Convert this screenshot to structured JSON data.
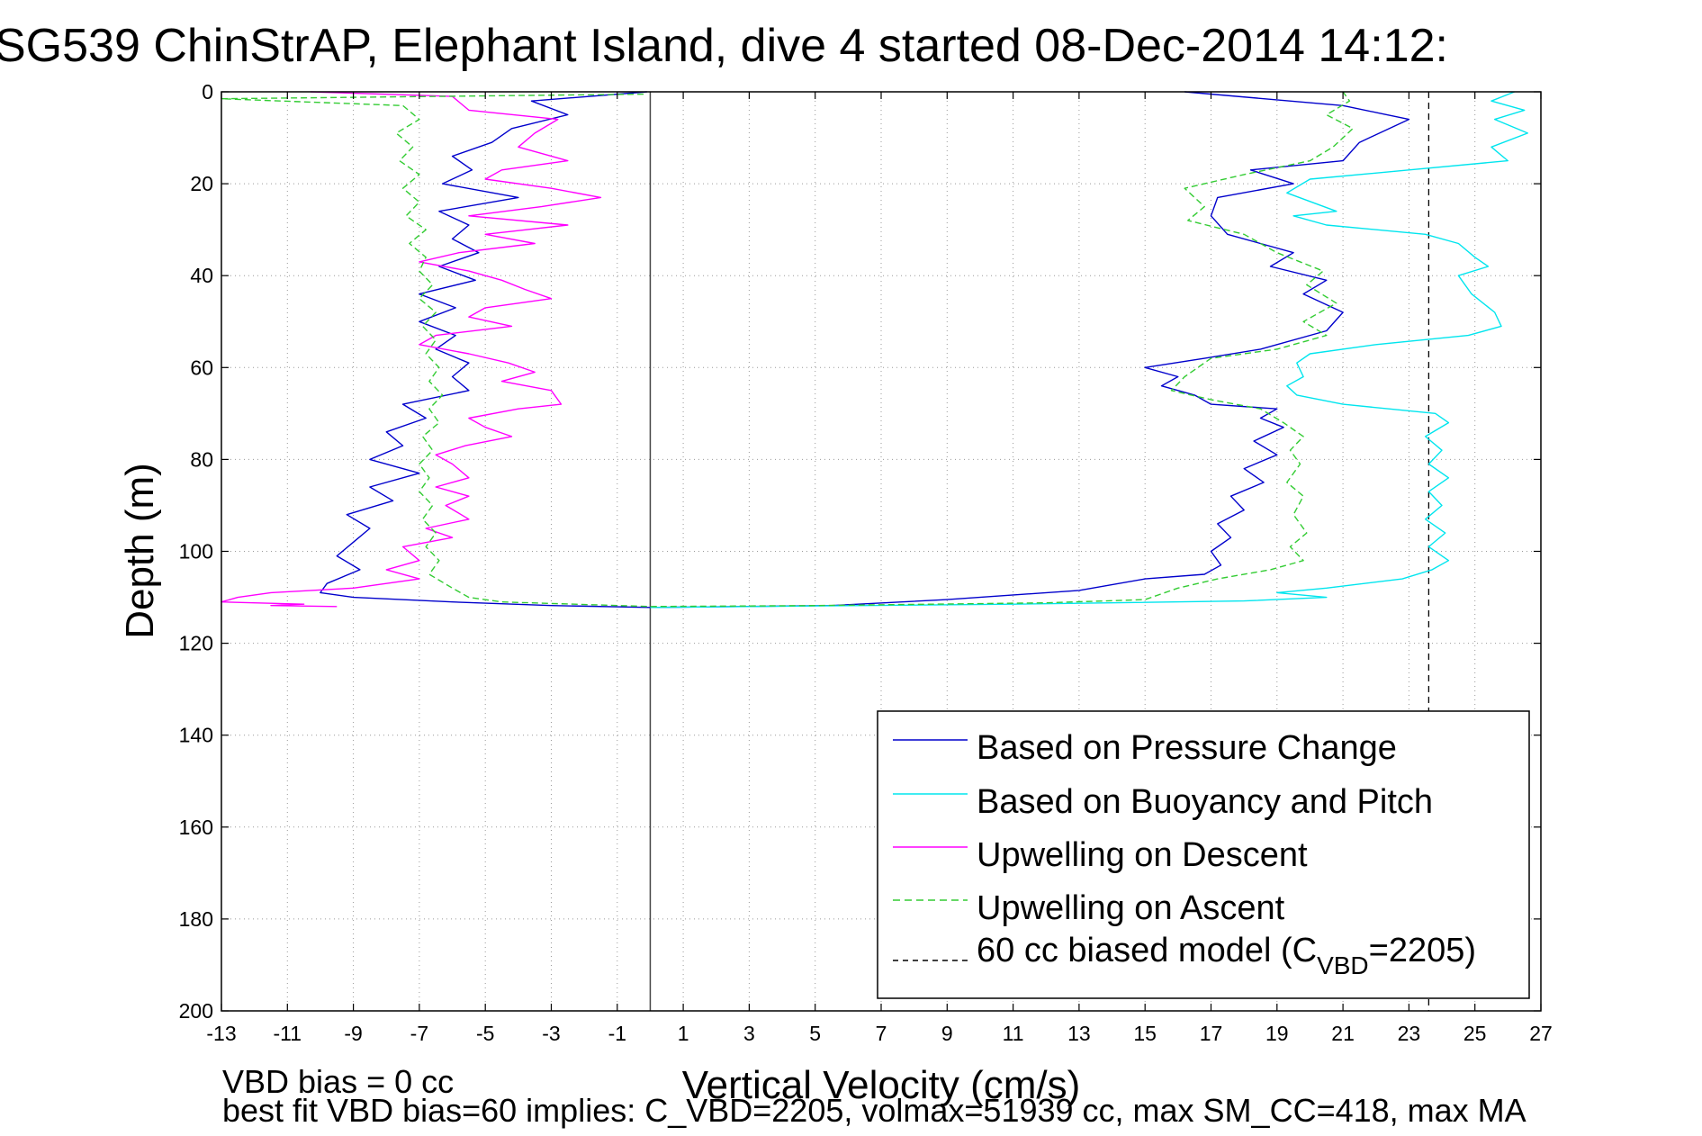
{
  "chart_data": {
    "type": "line",
    "title": "SG539 ChinStrAP, Elephant Island, dive 4 started 08-Dec-2014 14:12:",
    "xlabel": "Vertical Velocity (cm/s)",
    "ylabel": "Depth (m)",
    "xlim": [
      -13,
      27
    ],
    "ylim": [
      0,
      200
    ],
    "y_reversed": true,
    "grid": true,
    "x_ticks": [
      -13,
      -11,
      -9,
      -7,
      -5,
      -3,
      -1,
      1,
      3,
      5,
      7,
      9,
      11,
      13,
      15,
      17,
      19,
      21,
      23,
      25,
      27
    ],
    "y_ticks": [
      0,
      20,
      40,
      60,
      80,
      100,
      120,
      140,
      160,
      180,
      200
    ],
    "legend_position": "bottom-right",
    "legend": {
      "pressure": "Based on Pressure Change",
      "buoyancy": "Based on Buoyancy and Pitch",
      "descent": "Upwelling on Descent",
      "ascent": "Upwelling on Ascent",
      "model_prefix": "60 cc biased model (C",
      "model_sub": "VBD",
      "model_suffix": "=2205)"
    },
    "notes": {
      "bias": "VBD bias = 0 cc",
      "fit": "best fit VBD bias=60 implies: C_VBD=2205, volmax=51939 cc, max SM_CC=418, max MA"
    },
    "zero_line_x": 0,
    "model_line_x": 23.6,
    "series": [
      {
        "key": "pressure",
        "color": "#0000cc",
        "dashed": false,
        "points": [
          [
            -0.1,
            0
          ],
          [
            -3.6,
            2
          ],
          [
            -2.5,
            5
          ],
          [
            -4.2,
            8
          ],
          [
            -4.8,
            11
          ],
          [
            -6.0,
            14
          ],
          [
            -5.4,
            17
          ],
          [
            -6.3,
            20
          ],
          [
            -4.0,
            23
          ],
          [
            -6.4,
            26
          ],
          [
            -5.5,
            29
          ],
          [
            -6.0,
            32
          ],
          [
            -5.2,
            35
          ],
          [
            -6.4,
            38
          ],
          [
            -5.3,
            41
          ],
          [
            -7.0,
            44
          ],
          [
            -5.9,
            47
          ],
          [
            -7.0,
            50
          ],
          [
            -5.9,
            53
          ],
          [
            -6.5,
            56
          ],
          [
            -5.5,
            59
          ],
          [
            -6.0,
            62
          ],
          [
            -5.5,
            65
          ],
          [
            -7.5,
            68
          ],
          [
            -6.8,
            71
          ],
          [
            -8.0,
            74
          ],
          [
            -7.5,
            77
          ],
          [
            -8.5,
            80
          ],
          [
            -7.0,
            83
          ],
          [
            -8.5,
            86
          ],
          [
            -7.8,
            89
          ],
          [
            -9.2,
            92
          ],
          [
            -8.5,
            95
          ],
          [
            -9.0,
            98
          ],
          [
            -9.5,
            101
          ],
          [
            -8.8,
            104
          ],
          [
            -9.8,
            107
          ],
          [
            -10.0,
            109
          ],
          [
            -9.0,
            110
          ],
          [
            -6.0,
            111
          ],
          [
            -3.0,
            111.8
          ],
          [
            0.0,
            112.2
          ],
          [
            5.5,
            111.8
          ],
          [
            9.0,
            110.5
          ],
          [
            13.0,
            108.5
          ],
          [
            15.0,
            106
          ],
          [
            16.8,
            105
          ],
          [
            17.3,
            103
          ],
          [
            17.0,
            100
          ],
          [
            17.6,
            97
          ],
          [
            17.2,
            94
          ],
          [
            18.0,
            91
          ],
          [
            17.6,
            88
          ],
          [
            18.6,
            85
          ],
          [
            18.0,
            82
          ],
          [
            19.0,
            79
          ],
          [
            18.3,
            76
          ],
          [
            19.2,
            73
          ],
          [
            18.5,
            71
          ],
          [
            19.0,
            69
          ],
          [
            17.0,
            68
          ],
          [
            16.5,
            66
          ],
          [
            15.5,
            64
          ],
          [
            16.0,
            62
          ],
          [
            15.0,
            60
          ],
          [
            16.8,
            58
          ],
          [
            18.5,
            56
          ],
          [
            20.5,
            52
          ],
          [
            21.0,
            48
          ],
          [
            19.8,
            44
          ],
          [
            20.5,
            41
          ],
          [
            18.8,
            38
          ],
          [
            19.5,
            35
          ],
          [
            17.5,
            31
          ],
          [
            17.0,
            27
          ],
          [
            17.2,
            23
          ],
          [
            19.5,
            20
          ],
          [
            18.2,
            17
          ],
          [
            21.0,
            15
          ],
          [
            21.5,
            11
          ],
          [
            23.0,
            6
          ],
          [
            21.0,
            3
          ],
          [
            16.2,
            0
          ]
        ]
      },
      {
        "key": "buoyancy",
        "color": "#00e5ee",
        "dashed": false,
        "points": [
          [
            26.2,
            0
          ],
          [
            25.5,
            2
          ],
          [
            26.5,
            4
          ],
          [
            25.6,
            6
          ],
          [
            26.6,
            9
          ],
          [
            25.5,
            12
          ],
          [
            26.0,
            15
          ],
          [
            23.0,
            17
          ],
          [
            20.0,
            19
          ],
          [
            19.3,
            22
          ],
          [
            20.8,
            26
          ],
          [
            19.5,
            27
          ],
          [
            20.5,
            29
          ],
          [
            23.5,
            31
          ],
          [
            24.5,
            33
          ],
          [
            25.0,
            36
          ],
          [
            25.4,
            38
          ],
          [
            24.5,
            40
          ],
          [
            24.9,
            44
          ],
          [
            25.6,
            48
          ],
          [
            25.8,
            51
          ],
          [
            24.8,
            53
          ],
          [
            22.0,
            55
          ],
          [
            20.0,
            57
          ],
          [
            19.6,
            59
          ],
          [
            19.8,
            62
          ],
          [
            19.3,
            64
          ],
          [
            19.6,
            66
          ],
          [
            21.0,
            68
          ],
          [
            23.8,
            70
          ],
          [
            24.2,
            72
          ],
          [
            23.5,
            75
          ],
          [
            24.0,
            78
          ],
          [
            23.6,
            81
          ],
          [
            24.2,
            84
          ],
          [
            23.6,
            87
          ],
          [
            24.0,
            90
          ],
          [
            23.5,
            93
          ],
          [
            24.1,
            96
          ],
          [
            23.6,
            99
          ],
          [
            24.2,
            102
          ],
          [
            23.7,
            104
          ],
          [
            22.8,
            106
          ],
          [
            20.5,
            108
          ],
          [
            19.0,
            109
          ],
          [
            20.5,
            110
          ],
          [
            18.0,
            110.8
          ],
          [
            11.0,
            111.5
          ],
          [
            3.0,
            112
          ],
          [
            0.0,
            112.2
          ]
        ]
      },
      {
        "key": "descent",
        "color": "#ff00ff",
        "dashed": false,
        "points": [
          [
            -10.3,
            0
          ],
          [
            -6.0,
            1
          ],
          [
            -5.5,
            4
          ],
          [
            -2.8,
            6
          ],
          [
            -3.5,
            9
          ],
          [
            -4.0,
            12
          ],
          [
            -2.5,
            15
          ],
          [
            -4.5,
            17
          ],
          [
            -5.0,
            19
          ],
          [
            -3.0,
            21
          ],
          [
            -1.5,
            23
          ],
          [
            -3.3,
            25
          ],
          [
            -5.5,
            27
          ],
          [
            -2.5,
            29
          ],
          [
            -5.0,
            31
          ],
          [
            -3.5,
            33
          ],
          [
            -5.8,
            35
          ],
          [
            -7.0,
            37
          ],
          [
            -5.5,
            39
          ],
          [
            -4.5,
            41
          ],
          [
            -3.8,
            43
          ],
          [
            -3.0,
            45
          ],
          [
            -5.0,
            47
          ],
          [
            -5.5,
            49
          ],
          [
            -4.2,
            51
          ],
          [
            -6.5,
            53
          ],
          [
            -7.0,
            55
          ],
          [
            -5.5,
            57
          ],
          [
            -4.3,
            59
          ],
          [
            -3.5,
            61
          ],
          [
            -4.5,
            63
          ],
          [
            -3.0,
            65
          ],
          [
            -2.7,
            68
          ],
          [
            -4.0,
            69
          ],
          [
            -5.5,
            71
          ],
          [
            -5.0,
            73
          ],
          [
            -4.2,
            75
          ],
          [
            -5.6,
            77
          ],
          [
            -6.5,
            79
          ],
          [
            -6.0,
            81
          ],
          [
            -5.5,
            84
          ],
          [
            -6.5,
            86
          ],
          [
            -5.5,
            88
          ],
          [
            -6.2,
            90
          ],
          [
            -5.5,
            93
          ],
          [
            -6.8,
            95
          ],
          [
            -6.0,
            97
          ],
          [
            -7.5,
            99
          ],
          [
            -7.0,
            102
          ],
          [
            -8.0,
            104
          ],
          [
            -7.0,
            106
          ],
          [
            -9.0,
            108
          ],
          [
            -11.5,
            109
          ],
          [
            -12.5,
            110
          ],
          [
            -13.0,
            111
          ],
          [
            -10.5,
            111.5
          ],
          [
            -11.5,
            111.8
          ],
          [
            -9.5,
            112
          ]
        ]
      },
      {
        "key": "ascent",
        "color": "#33cc33",
        "dashed": true,
        "points": [
          [
            -0.2,
            0.5
          ],
          [
            -13.0,
            1.5
          ],
          [
            -7.5,
            3
          ],
          [
            -7.0,
            6
          ],
          [
            -7.7,
            9
          ],
          [
            -7.2,
            12
          ],
          [
            -7.6,
            15
          ],
          [
            -7.0,
            18
          ],
          [
            -7.5,
            21
          ],
          [
            -7.0,
            24
          ],
          [
            -7.4,
            27
          ],
          [
            -6.8,
            30
          ],
          [
            -7.3,
            33
          ],
          [
            -6.8,
            36
          ],
          [
            -7.0,
            39
          ],
          [
            -6.6,
            42
          ],
          [
            -7.0,
            45
          ],
          [
            -6.5,
            48
          ],
          [
            -6.9,
            51
          ],
          [
            -6.5,
            54
          ],
          [
            -6.8,
            57
          ],
          [
            -6.4,
            60
          ],
          [
            -6.7,
            63
          ],
          [
            -6.3,
            66
          ],
          [
            -6.7,
            69
          ],
          [
            -6.4,
            72
          ],
          [
            -6.9,
            75
          ],
          [
            -6.6,
            78
          ],
          [
            -7.0,
            81
          ],
          [
            -6.7,
            84
          ],
          [
            -7.0,
            87
          ],
          [
            -6.6,
            90
          ],
          [
            -6.9,
            93
          ],
          [
            -6.5,
            96
          ],
          [
            -6.8,
            99
          ],
          [
            -6.4,
            102
          ],
          [
            -6.7,
            105
          ],
          [
            -6.0,
            108
          ],
          [
            -5.5,
            110
          ],
          [
            -4.5,
            111
          ],
          [
            0.0,
            112
          ],
          [
            5.0,
            111.8
          ],
          [
            12.0,
            111.2
          ],
          [
            15.0,
            110.5
          ],
          [
            16.0,
            108
          ],
          [
            17.2,
            106
          ],
          [
            18.8,
            104
          ],
          [
            19.8,
            102
          ],
          [
            19.4,
            99
          ],
          [
            19.9,
            96
          ],
          [
            19.5,
            92
          ],
          [
            19.8,
            88
          ],
          [
            19.3,
            85
          ],
          [
            19.7,
            81
          ],
          [
            19.4,
            78
          ],
          [
            19.8,
            75
          ],
          [
            19.2,
            72
          ],
          [
            18.5,
            69
          ],
          [
            17.0,
            67
          ],
          [
            15.8,
            65
          ],
          [
            16.2,
            62
          ],
          [
            17.0,
            58
          ],
          [
            19.0,
            56
          ],
          [
            20.5,
            53
          ],
          [
            19.8,
            50
          ],
          [
            20.8,
            46
          ],
          [
            19.9,
            42
          ],
          [
            20.4,
            39
          ],
          [
            19.0,
            35
          ],
          [
            18.0,
            31
          ],
          [
            16.3,
            28
          ],
          [
            16.8,
            25
          ],
          [
            16.2,
            21
          ],
          [
            18.0,
            18
          ],
          [
            20.0,
            15
          ],
          [
            20.7,
            12
          ],
          [
            21.3,
            8
          ],
          [
            20.5,
            5
          ],
          [
            21.2,
            2
          ],
          [
            21.0,
            0
          ]
        ]
      }
    ]
  }
}
